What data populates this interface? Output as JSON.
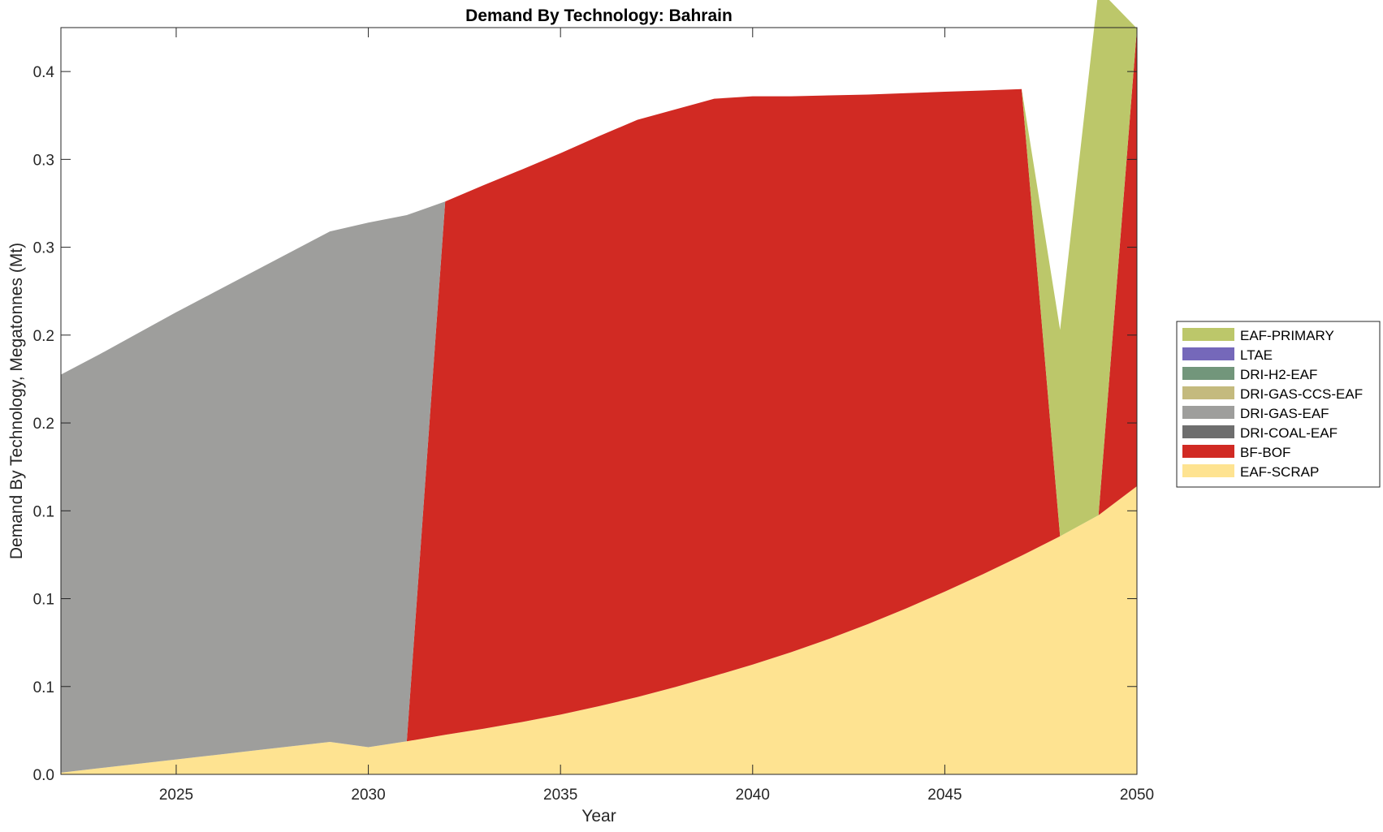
{
  "chart_data": {
    "type": "area",
    "title": "Demand By Technology: Bahrain",
    "xlabel": "Year",
    "ylabel": "Demand By Technology, Megatonnes (Mt)",
    "xlim": [
      2022,
      2050
    ],
    "ylim": [
      0,
      0.425
    ],
    "grid": false,
    "legend_position": "right",
    "x_ticks": [
      2025,
      2030,
      2035,
      2040,
      2045,
      2050
    ],
    "x_tick_labels": [
      "2025",
      "2030",
      "2035",
      "2040",
      "2045",
      "2050"
    ],
    "y_ticks": [
      0,
      0.05,
      0.1,
      0.15,
      0.2,
      0.25,
      0.3,
      0.35,
      0.4
    ],
    "y_tick_labels": [
      "0.0",
      "0.1",
      "0.1",
      "0.1",
      "0.2",
      "0.2",
      "0.3",
      "0.3",
      "0.4"
    ],
    "x": [
      2022,
      2023,
      2024,
      2025,
      2026,
      2027,
      2028,
      2029,
      2030,
      2031,
      2032,
      2033,
      2034,
      2035,
      2036,
      2037,
      2038,
      2039,
      2040,
      2041,
      2042,
      2043,
      2044,
      2045,
      2046,
      2047,
      2048,
      2049,
      2050
    ],
    "series": [
      {
        "name": "EAF-SCRAP",
        "color": "#FEE391",
        "values": [
          0.001,
          0.0035,
          0.006,
          0.0085,
          0.011,
          0.0135,
          0.016,
          0.0185,
          0.0155,
          0.0188,
          0.0225,
          0.026,
          0.0298,
          0.034,
          0.0388,
          0.044,
          0.0498,
          0.056,
          0.0625,
          0.0695,
          0.0772,
          0.0855,
          0.0945,
          0.104,
          0.114,
          0.1245,
          0.1355,
          0.1475,
          0.164
        ]
      },
      {
        "name": "BF-BOF",
        "color": "#D12A23",
        "values": [
          0,
          0,
          0,
          0,
          0,
          0,
          0,
          0,
          0,
          0,
          0.3035,
          0.3093,
          0.3145,
          0.3195,
          0.3244,
          0.3285,
          0.3287,
          0.3285,
          0.3234,
          0.3164,
          0.3092,
          0.3014,
          0.2932,
          0.2845,
          0.2752,
          0.2655,
          0,
          0,
          0.2605
        ]
      },
      {
        "name": "DRI-COAL-EAF",
        "color": "#6E6E6E",
        "values": [
          0,
          0,
          0,
          0,
          0,
          0,
          0,
          0,
          0,
          0,
          0,
          0,
          0,
          0,
          0,
          0,
          0,
          0,
          0,
          0,
          0,
          0,
          0,
          0,
          0,
          0,
          0,
          0,
          0
        ]
      },
      {
        "name": "DRI-GAS-EAF",
        "color": "#9E9E9C",
        "values": [
          0.2265,
          0.2355,
          0.245,
          0.2545,
          0.2635,
          0.2725,
          0.2815,
          0.2905,
          0.2985,
          0.2995,
          0,
          0,
          0,
          0,
          0,
          0,
          0,
          0,
          0,
          0,
          0,
          0,
          0,
          0,
          0,
          0,
          0,
          0,
          0
        ]
      },
      {
        "name": "DRI-GAS-CCS-EAF",
        "color": "#C4BA7E",
        "values": [
          0,
          0,
          0,
          0,
          0,
          0,
          0,
          0,
          0,
          0,
          0,
          0,
          0,
          0,
          0,
          0,
          0,
          0,
          0,
          0,
          0,
          0,
          0,
          0,
          0,
          0,
          0,
          0,
          0
        ]
      },
      {
        "name": "DRI-H2-EAF",
        "color": "#72967B",
        "values": [
          0,
          0,
          0,
          0,
          0,
          0,
          0,
          0,
          0,
          0,
          0,
          0,
          0,
          0,
          0,
          0,
          0,
          0,
          0,
          0,
          0,
          0,
          0,
          0,
          0,
          0,
          0,
          0,
          0
        ]
      },
      {
        "name": "LTAE",
        "color": "#7568BA",
        "values": [
          0,
          0,
          0,
          0,
          0,
          0,
          0,
          0,
          0,
          0,
          0,
          0,
          0,
          0,
          0,
          0,
          0,
          0,
          0,
          0,
          0,
          0,
          0,
          0,
          0,
          0,
          0,
          0,
          0
        ]
      },
      {
        "name": "EAF-PRIMARY",
        "color": "#BCC76A",
        "values": [
          0,
          0,
          0,
          0,
          0,
          0,
          0,
          0,
          0,
          0,
          0,
          0,
          0,
          0,
          0,
          0,
          0,
          0,
          0,
          0,
          0,
          0,
          0,
          0,
          0,
          0,
          0.1175,
          0.2995,
          0
        ]
      }
    ],
    "legend_order": [
      "EAF-PRIMARY",
      "LTAE",
      "DRI-H2-EAF",
      "DRI-GAS-CCS-EAF",
      "DRI-GAS-EAF",
      "DRI-COAL-EAF",
      "BF-BOF",
      "EAF-SCRAP"
    ]
  }
}
